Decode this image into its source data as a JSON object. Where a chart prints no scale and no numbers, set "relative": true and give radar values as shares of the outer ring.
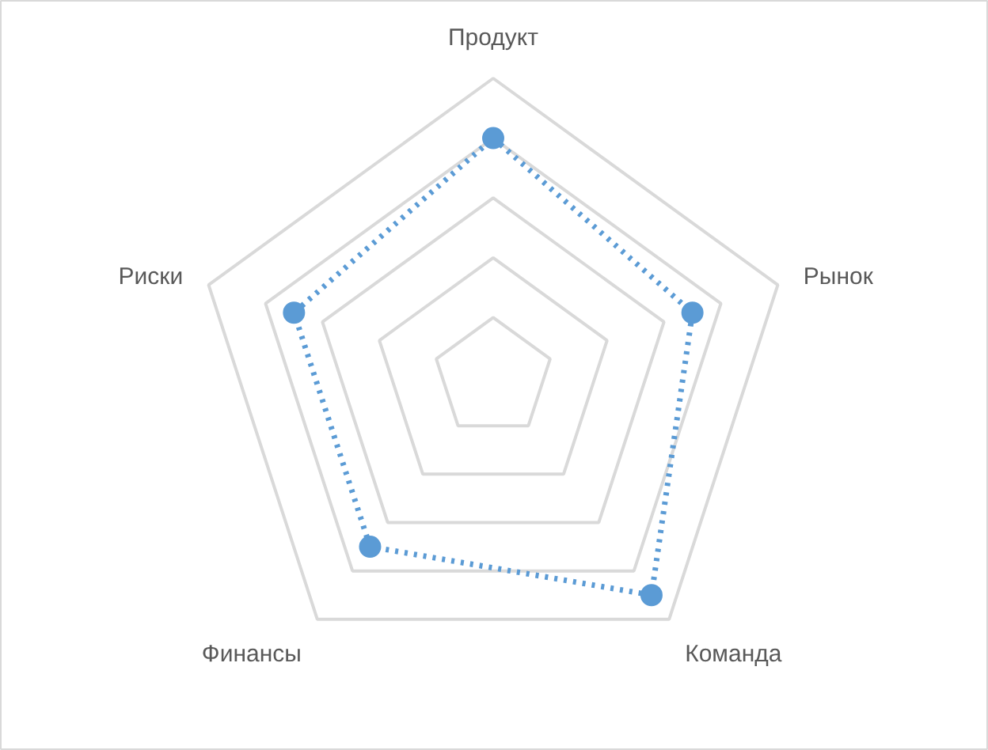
{
  "chart_data": {
    "type": "radar",
    "relative": true,
    "categories": [
      "Продукт",
      "Рынок",
      "Команда",
      "Финансы",
      "Риски"
    ],
    "series": [
      {
        "color": "#5b9bd5",
        "values": [
          0.8,
          0.7,
          0.9,
          0.7,
          0.7
        ]
      }
    ],
    "grid": true,
    "marker": "circle",
    "line_style": "dotted"
  }
}
